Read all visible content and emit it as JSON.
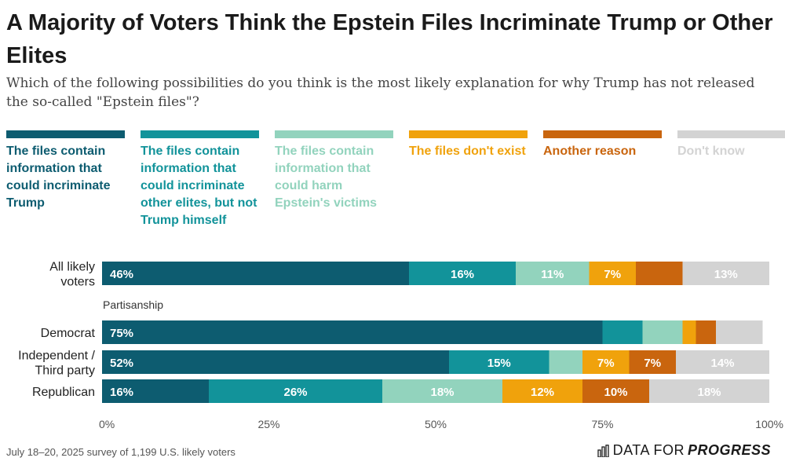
{
  "title": "A Majority of Voters Think the Epstein Files Incriminate Trump or Other Elites",
  "subtitle": "Which of the following possibilities do you think is the most likely explanation for why Trump has not released the so-called \"Epstein files\"?",
  "footer": "July 18–20, 2025 survey of 1,199 U.S. likely voters",
  "brand": {
    "regular": "DATA FOR",
    "bold": "PROGRESS"
  },
  "colors": {
    "incriminate_trump": "#0d5c70",
    "other_elites": "#12939a",
    "harm_victims": "#92d3bd",
    "dont_exist": "#f0a20c",
    "another_reason": "#c9650e",
    "dont_know": "#d3d3d3"
  },
  "legend": [
    {
      "label": "The files contain information that could incriminate Trump",
      "color": "#0d5c70",
      "text_color": "#0d5c70"
    },
    {
      "label": "The files contain information that could incriminate other elites, but not Trump himself",
      "color": "#12939a",
      "text_color": "#12939a"
    },
    {
      "label": "The files contain information that could harm Epstein's victims",
      "color": "#92d3bd",
      "text_color": "#92d3bd"
    },
    {
      "label": "The files don't exist",
      "color": "#f0a20c",
      "text_color": "#f0a20c"
    },
    {
      "label": "Another reason",
      "color": "#c9650e",
      "text_color": "#c9650e"
    },
    {
      "label": "Don't know",
      "color": "#d3d3d3",
      "text_color": "#d3d3d3"
    }
  ],
  "chart_data": {
    "type": "bar",
    "orientation": "horizontal",
    "stacked": true,
    "xlim": [
      0,
      100
    ],
    "xticks": [
      "0%",
      "25%",
      "50%",
      "75%",
      "100%"
    ],
    "series_names": [
      "The files contain information that could incriminate Trump",
      "The files contain information that could incriminate other elites, but not Trump himself",
      "The files contain information that could harm Epstein's victims",
      "The files don't exist",
      "Another reason",
      "Don't know"
    ],
    "group_label": "Partisanship",
    "rows": [
      {
        "category": "All likely voters",
        "lines": [
          "All likely",
          "voters"
        ],
        "values": [
          46,
          16,
          11,
          7,
          7,
          13
        ],
        "labels": [
          "46%",
          "16%",
          "11%",
          "7%",
          "",
          "13%"
        ]
      },
      {
        "category": "Democrat",
        "lines": [
          "Democrat"
        ],
        "values": [
          75,
          6,
          6,
          2,
          3,
          7
        ],
        "labels": [
          "75%",
          "",
          "",
          "",
          "",
          ""
        ]
      },
      {
        "category": "Independent / Third party",
        "lines": [
          "Independent /",
          "Third party"
        ],
        "values": [
          52,
          15,
          5,
          7,
          7,
          14
        ],
        "labels": [
          "52%",
          "15%",
          "",
          "7%",
          "7%",
          "14%"
        ]
      },
      {
        "category": "Republican",
        "lines": [
          "Republican"
        ],
        "values": [
          16,
          26,
          18,
          12,
          10,
          18
        ],
        "labels": [
          "16%",
          "26%",
          "18%",
          "12%",
          "10%",
          "18%"
        ]
      }
    ]
  }
}
